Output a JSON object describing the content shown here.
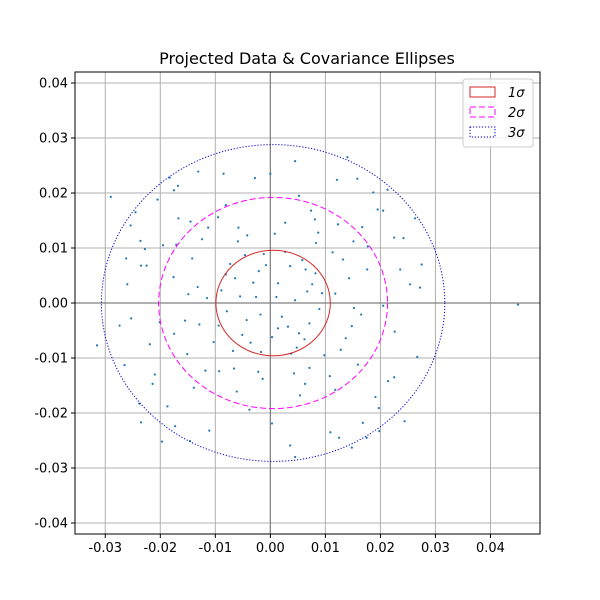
{
  "chart_data": {
    "type": "scatter",
    "title": "Projected Data & Covariance Ellipses",
    "xlabel": "",
    "ylabel": "",
    "xlim": [
      -0.0355,
      0.049
    ],
    "ylim": [
      -0.042,
      0.042
    ],
    "grid": true,
    "legend_position": "top-right",
    "x_ticks": [
      "-0.03",
      "-0.02",
      "-0.01",
      "0.00",
      "0.01",
      "0.02",
      "0.03",
      "0.04"
    ],
    "y_ticks": [
      "-0.04",
      "-0.03",
      "-0.02",
      "-0.01",
      "0.00",
      "0.01",
      "0.02",
      "0.03",
      "0.04"
    ],
    "point_color": "#1f77b4",
    "points": [
      [
        0.045,
        -0.0003
      ],
      [
        -0.029,
        0.0193
      ],
      [
        -0.0315,
        -0.0077
      ],
      [
        -0.026,
        0.0034
      ],
      [
        -0.0235,
        0.0068
      ],
      [
        -0.0235,
        -0.0217
      ],
      [
        -0.021,
        -0.013
      ],
      [
        -0.0225,
        0.0068
      ],
      [
        0.0225,
        -0.0135
      ],
      [
        0.0275,
        0.007
      ],
      [
        0.0175,
        -0.0245
      ],
      [
        0.014,
        0.0265
      ],
      [
        0.0125,
        -0.0245
      ],
      [
        0.0045,
        -0.028
      ],
      [
        -0.0085,
        0.0235
      ],
      [
        0.0,
        0.0235
      ],
      [
        0.0045,
        0.0258
      ],
      [
        -0.0175,
        0.0205
      ],
      [
        0.0195,
        0.017
      ],
      [
        0.0205,
        -0.0005
      ],
      [
        -0.0055,
        0.0012
      ],
      [
        0.0032,
        -0.0043
      ],
      [
        -0.0021,
        0.0058
      ],
      [
        0.0067,
        0.0021
      ],
      [
        -0.0036,
        -0.0072
      ],
      [
        0.0014,
        0.0036
      ],
      [
        -0.0079,
        -0.0015
      ],
      [
        0.0048,
        -0.0081
      ],
      [
        -0.0012,
        0.0089
      ],
      [
        0.0082,
        0.0054
      ],
      [
        -0.0064,
        0.0045
      ],
      [
        0.0021,
        -0.0025
      ],
      [
        -0.0043,
        -0.0031
      ],
      [
        0.0058,
        0.0078
      ],
      [
        0.0003,
        -0.0062
      ],
      [
        -0.0089,
        0.0023
      ],
      [
        0.0071,
        -0.0037
      ],
      [
        -0.0026,
        0.0011
      ],
      [
        0.0036,
        0.0067
      ],
      [
        -0.0051,
        -0.0058
      ],
      [
        0.0089,
        -0.0011
      ],
      [
        -0.0017,
        -0.0089
      ],
      [
        0.0011,
        0.0011
      ],
      [
        -0.0073,
        0.0071
      ],
      [
        0.0062,
        -0.0066
      ],
      [
        0.0027,
        0.0093
      ],
      [
        -0.0094,
        -0.0041
      ],
      [
        0.0045,
        0.0005
      ],
      [
        -0.0031,
        0.0037
      ],
      [
        0.0076,
        0.0034
      ],
      [
        -0.0068,
        -0.0087
      ],
      [
        0.0014,
        -0.0046
      ],
      [
        -0.0008,
        0.0069
      ],
      [
        0.0094,
        0.0018
      ],
      [
        -0.0046,
        0.0087
      ],
      [
        0.0052,
        -0.0055
      ],
      [
        -0.0081,
        0.0052
      ],
      [
        0.0038,
        -0.0092
      ],
      [
        -0.0018,
        -0.0021
      ],
      [
        0.0064,
        0.0061
      ],
      [
        -0.0142,
        0.0081
      ],
      [
        0.0137,
        -0.0064
      ],
      [
        -0.0118,
        -0.0123
      ],
      [
        0.0151,
        0.0112
      ],
      [
        -0.0155,
        -0.0032
      ],
      [
        0.0123,
        0.0143
      ],
      [
        -0.0095,
        0.0156
      ],
      [
        0.0108,
        -0.0133
      ],
      [
        -0.0132,
        0.0029
      ],
      [
        0.0165,
        -0.0021
      ],
      [
        -0.0061,
        -0.0161
      ],
      [
        0.0074,
        0.0168
      ],
      [
        -0.0171,
        0.0106
      ],
      [
        0.0143,
        0.0045
      ],
      [
        -0.0103,
        -0.0071
      ],
      [
        0.0118,
        -0.0158
      ],
      [
        -0.0139,
        -0.0154
      ],
      [
        0.0087,
        0.0128
      ],
      [
        -0.0167,
        0.0154
      ],
      [
        0.0159,
        -0.0112
      ],
      [
        -0.0058,
        0.0137
      ],
      [
        0.0063,
        -0.0147
      ],
      [
        -0.0124,
        0.0116
      ],
      [
        0.0132,
        0.0079
      ],
      [
        -0.0151,
        -0.0093
      ],
      [
        0.0098,
        -0.0095
      ],
      [
        -0.0113,
        0.0137
      ],
      [
        0.0148,
        -0.0042
      ],
      [
        -0.0093,
        -0.0124
      ],
      [
        0.0176,
        0.0061
      ],
      [
        -0.0175,
        -0.0056
      ],
      [
        0.0113,
        0.0092
      ],
      [
        -0.0081,
        0.0178
      ],
      [
        0.0054,
        -0.0168
      ],
      [
        -0.0129,
        -0.0039
      ],
      [
        0.0167,
        0.0138
      ],
      [
        -0.0176,
        0.0047
      ],
      [
        0.0128,
        -0.0085
      ],
      [
        -0.0145,
        0.0148
      ],
      [
        0.0081,
        0.0152
      ],
      [
        -0.0195,
        0.0105
      ],
      [
        0.0226,
        -0.0052
      ],
      [
        -0.0253,
        -0.0028
      ],
      [
        0.0242,
        0.0118
      ],
      [
        -0.0214,
        -0.0147
      ],
      [
        0.0205,
        0.0168
      ],
      [
        -0.0168,
        0.0213
      ],
      [
        0.0197,
        -0.0191
      ],
      [
        -0.0228,
        0.0098
      ],
      [
        0.0254,
        0.0034
      ],
      [
        -0.0111,
        -0.0232
      ],
      [
        0.0121,
        0.0224
      ],
      [
        -0.0245,
        0.0165
      ],
      [
        0.0214,
        -0.0142
      ],
      [
        -0.0187,
        -0.0188
      ],
      [
        0.0168,
        -0.0218
      ],
      [
        -0.0219,
        -0.0075
      ],
      [
        0.0236,
        0.0061
      ],
      [
        -0.0262,
        0.0081
      ],
      [
        0.0158,
        0.0226
      ],
      [
        -0.0131,
        0.0239
      ],
      [
        0.0109,
        -0.0235
      ],
      [
        -0.0265,
        -0.0113
      ],
      [
        0.0267,
        -0.0098
      ],
      [
        -0.0205,
        0.0188
      ],
      [
        0.0187,
        0.0201
      ],
      [
        -0.0173,
        -0.0224
      ],
      [
        0.0191,
        -0.0171
      ],
      [
        -0.0238,
        -0.0183
      ],
      [
        0.0263,
        0.0154
      ],
      [
        -0.0236,
        0.0113
      ],
      [
        0.0244,
        -0.0215
      ],
      [
        -0.0197,
        -0.0252
      ],
      [
        0.0272,
        0.0028
      ],
      [
        -0.0183,
        0.0228
      ],
      [
        0.0225,
        0.0119
      ],
      [
        -0.0254,
        0.0141
      ],
      [
        0.0148,
        -0.0263
      ],
      [
        -0.0274,
        -0.0041
      ],
      [
        0.0198,
        -0.0233
      ],
      [
        -0.0146,
        -0.0251
      ],
      [
        0.0213,
        0.0206
      ],
      [
        -0.0201,
        -0.0035
      ],
      [
        0.0177,
        0.0103
      ],
      [
        -0.0014,
        -0.0138
      ],
      [
        0.0027,
        0.0146
      ],
      [
        -0.0038,
        -0.0194
      ],
      [
        0.0052,
        0.0195
      ],
      [
        0.0003,
        -0.0219
      ],
      [
        -0.0028,
        0.0227
      ],
      [
        0.0036,
        -0.0259
      ],
      [
        -0.0022,
        -0.0125
      ],
      [
        0.0008,
        0.0126
      ],
      [
        -0.0115,
        0.0009
      ],
      [
        0.0118,
        0.0017
      ],
      [
        -0.0149,
        0.0016
      ],
      [
        0.0152,
        -0.0009
      ],
      [
        -0.0059,
        0.0112
      ],
      [
        0.0071,
        -0.0118
      ],
      [
        -0.0066,
        -0.0119
      ],
      [
        0.0083,
        0.0109
      ],
      [
        -0.0042,
        0.0123
      ],
      [
        0.0043,
        -0.0128
      ]
    ],
    "ellipses": [
      {
        "name": "1σ",
        "sigma": 1,
        "center": [
          0.0005,
          0.0
        ],
        "rx": 0.0104,
        "ry": 0.0096,
        "color": "#d62728",
        "dash": "solid"
      },
      {
        "name": "2σ",
        "sigma": 2,
        "center": [
          0.0005,
          0.0
        ],
        "rx": 0.0208,
        "ry": 0.0192,
        "color": "#ff00ff",
        "dash": "dashed"
      },
      {
        "name": "3σ",
        "sigma": 3,
        "center": [
          0.0005,
          0.0
        ],
        "rx": 0.0312,
        "ry": 0.0288,
        "color": "#0000cc",
        "dash": "dotted"
      }
    ],
    "legend": [
      {
        "label": "1σ",
        "color": "#d62728",
        "dash": "solid"
      },
      {
        "label": "2σ",
        "color": "#ff00ff",
        "dash": "dashed"
      },
      {
        "label": "3σ",
        "color": "#0000cc",
        "dash": "dotted"
      }
    ]
  }
}
